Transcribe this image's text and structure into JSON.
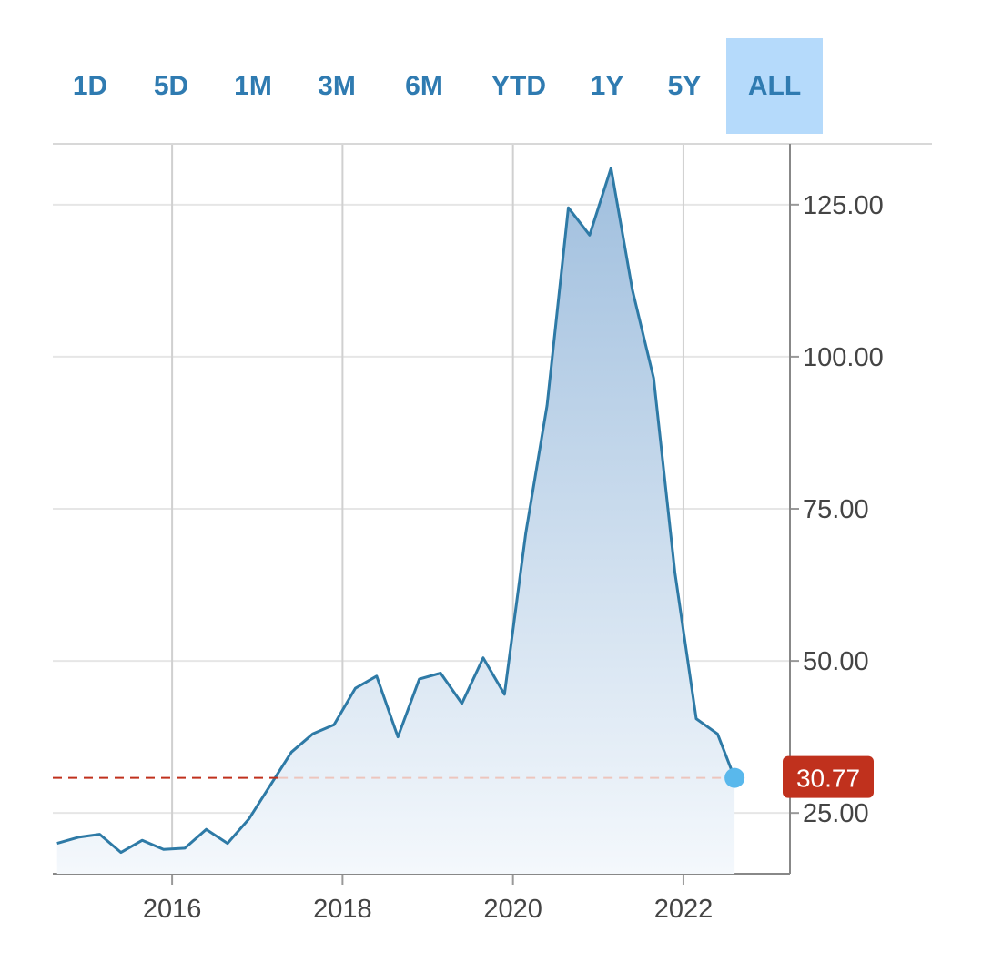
{
  "range_buttons": [
    {
      "label": "1D",
      "active": false
    },
    {
      "label": "5D",
      "active": false
    },
    {
      "label": "1M",
      "active": false
    },
    {
      "label": "3M",
      "active": false
    },
    {
      "label": "6M",
      "active": false
    },
    {
      "label": "YTD",
      "active": false
    },
    {
      "label": "1Y",
      "active": false
    },
    {
      "label": "5Y",
      "active": false
    },
    {
      "label": "ALL",
      "active": true
    }
  ],
  "colors": {
    "accent": "#2f7bb1",
    "active_button_bg": "#b5dafb",
    "line": "#2e7aa6",
    "area_top": "#9dbddd",
    "area_bottom": "#f4f8fc",
    "current_badge": "#c0311d",
    "current_dot": "#59b8ec",
    "reference_line": "#c0311d"
  },
  "chart_data": {
    "type": "area",
    "x_ticks": [
      "2016",
      "2018",
      "2020",
      "2022"
    ],
    "y_ticks": [
      "25.00",
      "50.00",
      "75.00",
      "100.00",
      "125.00"
    ],
    "xlim": [
      2014.6,
      2023.25
    ],
    "ylim": [
      15,
      135
    ],
    "grid": true,
    "y_axis_position": "right",
    "current_value": 30.77,
    "current_label": "30.77",
    "series": [
      {
        "x": [
          2014.65,
          2014.9,
          2015.15,
          2015.4,
          2015.65,
          2015.9,
          2016.15,
          2016.4,
          2016.65,
          2016.9,
          2017.15,
          2017.4,
          2017.65,
          2017.9,
          2018.15,
          2018.4,
          2018.65,
          2018.9,
          2019.15,
          2019.4,
          2019.65,
          2019.9,
          2020.15,
          2020.4,
          2020.65,
          2020.9,
          2021.15,
          2021.4,
          2021.65,
          2021.9,
          2022.15,
          2022.4,
          2022.6
        ],
        "values": [
          20.0,
          21.0,
          21.5,
          18.5,
          20.5,
          19.0,
          19.2,
          22.3,
          20.0,
          24.0,
          29.5,
          35.0,
          38.0,
          39.5,
          45.5,
          47.5,
          37.5,
          47.0,
          48.0,
          43.0,
          50.5,
          44.5,
          71.0,
          92.0,
          124.5,
          120.0,
          131.0,
          111.0,
          96.5,
          64.5,
          40.5,
          38.0,
          30.77
        ]
      }
    ]
  }
}
